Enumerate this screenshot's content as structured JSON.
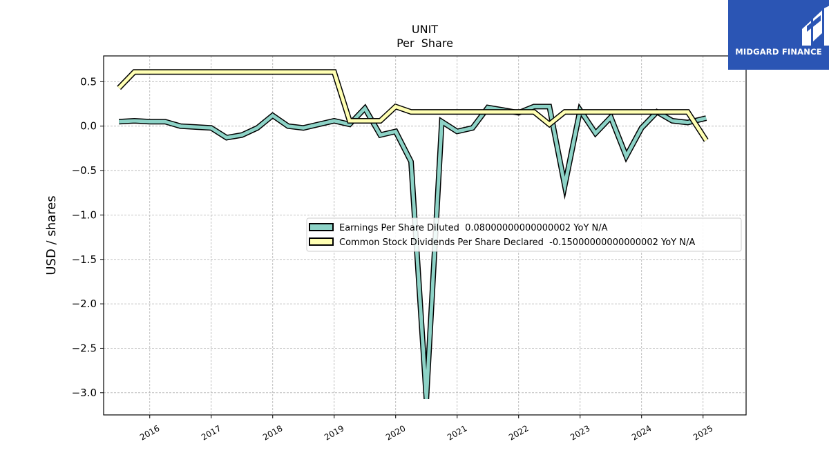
{
  "logo": {
    "text": "MIDGARD FINANCE",
    "icon": "midgard-logo-icon",
    "background": "#2b55b4"
  },
  "chart_data": {
    "type": "line",
    "title": "UNIT",
    "subtitle": "Per  Share",
    "xlabel": "",
    "ylabel": "USD / shares",
    "ylim": [
      -3.25,
      0.79
    ],
    "xlim": [
      2015.25,
      2025.7
    ],
    "yticks": [
      0.5,
      0.0,
      -0.5,
      -1.0,
      -1.5,
      -2.0,
      -2.5,
      -3.0
    ],
    "ytick_labels": [
      "0.5",
      "0.0",
      "−0.5",
      "−1.0",
      "−1.5",
      "−2.0",
      "−2.5",
      "−3.0"
    ],
    "xticks": [
      2016,
      2017,
      2018,
      2019,
      2020,
      2021,
      2022,
      2023,
      2024,
      2025
    ],
    "xtick_labels": [
      "2016",
      "2017",
      "2018",
      "2019",
      "2020",
      "2021",
      "2022",
      "2023",
      "2024",
      "2025"
    ],
    "grid": true,
    "legend_position": "center-right",
    "series": [
      {
        "name": "Earnings Per Share Diluted  0.08000000000000002 YoY N/A",
        "color": "#8dd3c7",
        "x": [
          2015.5,
          2015.75,
          2016.0,
          2016.25,
          2016.5,
          2016.75,
          2017.0,
          2017.25,
          2017.5,
          2017.75,
          2018.0,
          2018.25,
          2018.5,
          2018.75,
          2019.0,
          2019.25,
          2019.5,
          2019.75,
          2020.0,
          2020.25,
          2020.5,
          2020.75,
          2021.0,
          2021.25,
          2021.5,
          2021.75,
          2022.0,
          2022.25,
          2022.5,
          2022.75,
          2023.0,
          2023.25,
          2023.5,
          2023.75,
          2024.0,
          2024.25,
          2024.5,
          2024.75,
          2025.05
        ],
        "y": [
          0.05,
          0.06,
          0.05,
          0.05,
          0.0,
          -0.01,
          -0.02,
          -0.13,
          -0.1,
          -0.02,
          0.12,
          0.0,
          -0.02,
          0.02,
          0.06,
          0.02,
          0.2,
          -0.1,
          -0.06,
          -0.4,
          -3.07,
          0.05,
          -0.06,
          -0.02,
          0.21,
          0.18,
          0.15,
          0.22,
          0.22,
          -0.67,
          0.18,
          -0.08,
          0.1,
          -0.34,
          -0.02,
          0.16,
          0.06,
          0.04,
          0.09
        ]
      },
      {
        "name": "Common Stock Dividends Per Share Declared  -0.15000000000000002 YoY N/A",
        "color": "#ffffb3",
        "x": [
          2015.5,
          2015.75,
          2016.0,
          2016.25,
          2016.5,
          2016.75,
          2017.0,
          2017.25,
          2017.5,
          2017.75,
          2018.0,
          2018.25,
          2018.5,
          2018.75,
          2019.0,
          2019.25,
          2019.5,
          2019.75,
          2020.0,
          2020.25,
          2020.5,
          2020.75,
          2021.0,
          2021.25,
          2021.5,
          2021.75,
          2022.0,
          2022.25,
          2022.5,
          2022.75,
          2023.0,
          2023.25,
          2023.5,
          2023.75,
          2024.0,
          2024.25,
          2024.5,
          2024.75,
          2025.05
        ],
        "y": [
          0.43,
          0.61,
          0.61,
          0.61,
          0.61,
          0.61,
          0.61,
          0.61,
          0.61,
          0.61,
          0.61,
          0.61,
          0.61,
          0.61,
          0.61,
          0.06,
          0.06,
          0.06,
          0.22,
          0.16,
          0.16,
          0.16,
          0.16,
          0.16,
          0.16,
          0.16,
          0.16,
          0.16,
          0.02,
          0.16,
          0.16,
          0.16,
          0.16,
          0.16,
          0.16,
          0.16,
          0.16,
          0.16,
          -0.16
        ]
      }
    ]
  }
}
